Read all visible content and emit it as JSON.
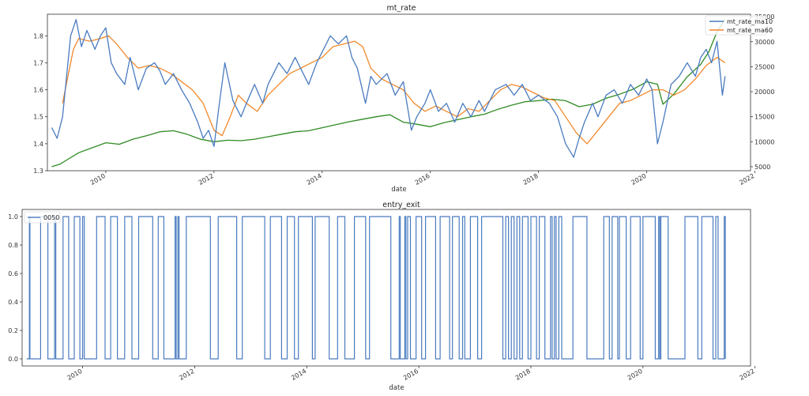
{
  "chart_data": [
    {
      "type": "line",
      "title": "mt_rate",
      "xlabel": "date",
      "ylabel": "",
      "x_ticks": [
        "2010",
        "2012",
        "2014",
        "2016",
        "2018",
        "2020",
        "2022"
      ],
      "xlim": [
        2008.92,
        2021.92
      ],
      "ylim": [
        1.3,
        1.88
      ],
      "y_ticks": [
        "1.3",
        "1.4",
        "1.5",
        "1.6",
        "1.7",
        "1.8"
      ],
      "y2lim": [
        4200,
        35500
      ],
      "y2_ticks": [
        "5000",
        "10000",
        "15000",
        "20000",
        "25000",
        "30000",
        "35000"
      ],
      "legend_loc": "top-right",
      "colors": {
        "mt_rate_ma10": "#4a7bbf",
        "mt_rate_ma60": "#f0882a",
        "index": "#2e8b22"
      },
      "series": [
        {
          "name": "mt_rate_ma10",
          "axis": "left",
          "x": [
            2009.0,
            2009.1,
            2009.2,
            2009.35,
            2009.45,
            2009.55,
            2009.65,
            2009.8,
            2009.9,
            2010.0,
            2010.1,
            2010.2,
            2010.35,
            2010.45,
            2010.6,
            2010.75,
            2010.9,
            2011.0,
            2011.1,
            2011.25,
            2011.4,
            2011.55,
            2011.7,
            2011.8,
            2011.9,
            2012.0,
            2012.1,
            2012.2,
            2012.35,
            2012.5,
            2012.6,
            2012.75,
            2012.9,
            2013.0,
            2013.2,
            2013.35,
            2013.5,
            2013.6,
            2013.75,
            2013.9,
            2014.0,
            2014.15,
            2014.3,
            2014.45,
            2014.55,
            2014.65,
            2014.8,
            2014.9,
            2015.0,
            2015.2,
            2015.35,
            2015.5,
            2015.65,
            2015.75,
            2015.9,
            2016.0,
            2016.15,
            2016.3,
            2016.45,
            2016.6,
            2016.75,
            2016.9,
            2017.0,
            2017.2,
            2017.4,
            2017.55,
            2017.7,
            2017.85,
            2018.0,
            2018.2,
            2018.35,
            2018.5,
            2018.65,
            2018.75,
            2018.85,
            2019.0,
            2019.1,
            2019.25,
            2019.4,
            2019.55,
            2019.7,
            2019.85,
            2020.0,
            2020.1,
            2020.2,
            2020.3,
            2020.45,
            2020.6,
            2020.75,
            2020.9,
            2021.0,
            2021.1,
            2021.2,
            2021.3,
            2021.4,
            2021.45
          ],
          "values": [
            1.46,
            1.42,
            1.5,
            1.8,
            1.86,
            1.76,
            1.82,
            1.75,
            1.8,
            1.83,
            1.7,
            1.66,
            1.62,
            1.72,
            1.6,
            1.68,
            1.7,
            1.67,
            1.62,
            1.66,
            1.6,
            1.55,
            1.48,
            1.42,
            1.45,
            1.39,
            1.55,
            1.7,
            1.56,
            1.5,
            1.55,
            1.62,
            1.55,
            1.62,
            1.7,
            1.66,
            1.72,
            1.68,
            1.62,
            1.7,
            1.74,
            1.8,
            1.77,
            1.8,
            1.72,
            1.68,
            1.55,
            1.65,
            1.62,
            1.66,
            1.58,
            1.63,
            1.45,
            1.5,
            1.55,
            1.6,
            1.52,
            1.55,
            1.48,
            1.55,
            1.5,
            1.56,
            1.52,
            1.6,
            1.62,
            1.58,
            1.62,
            1.56,
            1.58,
            1.55,
            1.5,
            1.4,
            1.35,
            1.42,
            1.48,
            1.55,
            1.5,
            1.58,
            1.6,
            1.55,
            1.62,
            1.58,
            1.64,
            1.6,
            1.4,
            1.48,
            1.62,
            1.65,
            1.7,
            1.65,
            1.72,
            1.75,
            1.7,
            1.78,
            1.58,
            1.65
          ]
        },
        {
          "name": "mt_rate_ma60",
          "axis": "left",
          "x": [
            2009.2,
            2009.3,
            2009.4,
            2009.5,
            2009.7,
            2009.9,
            2010.05,
            2010.2,
            2010.4,
            2010.6,
            2010.8,
            2011.0,
            2011.2,
            2011.4,
            2011.6,
            2011.8,
            2012.0,
            2012.15,
            2012.3,
            2012.45,
            2012.6,
            2012.8,
            2013.0,
            2013.2,
            2013.4,
            2013.6,
            2013.8,
            2014.0,
            2014.2,
            2014.4,
            2014.6,
            2014.75,
            2014.9,
            2015.1,
            2015.3,
            2015.5,
            2015.7,
            2015.9,
            2016.1,
            2016.3,
            2016.5,
            2016.7,
            2016.9,
            2017.1,
            2017.3,
            2017.5,
            2017.7,
            2017.9,
            2018.1,
            2018.3,
            2018.5,
            2018.7,
            2018.9,
            2019.1,
            2019.3,
            2019.5,
            2019.7,
            2019.9,
            2020.1,
            2020.3,
            2020.5,
            2020.7,
            2020.9,
            2021.1,
            2021.3,
            2021.45
          ],
          "values": [
            1.55,
            1.65,
            1.75,
            1.79,
            1.78,
            1.79,
            1.8,
            1.77,
            1.72,
            1.68,
            1.69,
            1.68,
            1.66,
            1.63,
            1.6,
            1.55,
            1.45,
            1.43,
            1.5,
            1.58,
            1.55,
            1.52,
            1.58,
            1.62,
            1.66,
            1.68,
            1.7,
            1.72,
            1.76,
            1.77,
            1.78,
            1.76,
            1.68,
            1.64,
            1.62,
            1.6,
            1.55,
            1.52,
            1.54,
            1.52,
            1.5,
            1.53,
            1.52,
            1.56,
            1.6,
            1.62,
            1.61,
            1.59,
            1.57,
            1.56,
            1.5,
            1.44,
            1.4,
            1.45,
            1.5,
            1.55,
            1.56,
            1.58,
            1.6,
            1.6,
            1.58,
            1.6,
            1.64,
            1.69,
            1.72,
            1.7
          ]
        },
        {
          "name": "",
          "axis": "right",
          "x": [
            2009.0,
            2009.15,
            2009.3,
            2009.5,
            2009.75,
            2010.0,
            2010.25,
            2010.5,
            2010.75,
            2011.0,
            2011.25,
            2011.5,
            2011.75,
            2012.0,
            2012.25,
            2012.5,
            2012.75,
            2013.0,
            2013.25,
            2013.5,
            2013.75,
            2014.0,
            2014.25,
            2014.5,
            2014.75,
            2015.0,
            2015.25,
            2015.5,
            2015.75,
            2016.0,
            2016.25,
            2016.5,
            2016.75,
            2017.0,
            2017.25,
            2017.5,
            2017.75,
            2018.0,
            2018.25,
            2018.5,
            2018.75,
            2019.0,
            2019.25,
            2019.5,
            2019.75,
            2020.0,
            2020.2,
            2020.3,
            2020.5,
            2020.75,
            2021.0,
            2021.15,
            2021.3,
            2021.45
          ],
          "values": [
            5000,
            5500,
            6500,
            7800,
            8800,
            9800,
            9500,
            10500,
            11200,
            12000,
            12200,
            11500,
            10500,
            10000,
            10300,
            10200,
            10500,
            11000,
            11500,
            12000,
            12200,
            12800,
            13400,
            14000,
            14500,
            15000,
            15400,
            13900,
            13500,
            13000,
            13800,
            14400,
            15000,
            15500,
            16500,
            17300,
            18000,
            18200,
            18500,
            18200,
            17000,
            17500,
            18700,
            19500,
            20500,
            22000,
            21500,
            17500,
            19500,
            23000,
            25500,
            28000,
            32000,
            34500
          ]
        }
      ]
    },
    {
      "type": "line",
      "title": "entry_exit",
      "xlabel": "date",
      "ylabel": "",
      "x_ticks": [
        "2010",
        "2012",
        "2014",
        "2016",
        "2018",
        "2020",
        "2022"
      ],
      "xlim": [
        2008.92,
        2021.92
      ],
      "ylim": [
        -0.05,
        1.05
      ],
      "y_ticks": [
        "0.0",
        "0.2",
        "0.4",
        "0.6",
        "0.8",
        "1.0"
      ],
      "legend_loc": "top-left",
      "colors": {
        "0050": "#4a7bbf"
      },
      "series": [
        {
          "name": "0050",
          "type": "step",
          "on_intervals": [
            [
              2009.05,
              2009.06
            ],
            [
              2009.25,
              2009.38
            ],
            [
              2009.5,
              2009.52
            ],
            [
              2009.65,
              2009.75
            ],
            [
              2009.85,
              2009.95
            ],
            [
              2010.0,
              2010.03
            ],
            [
              2010.25,
              2010.4
            ],
            [
              2010.5,
              2010.62
            ],
            [
              2010.75,
              2010.88
            ],
            [
              2011.0,
              2011.25
            ],
            [
              2011.35,
              2011.45
            ],
            [
              2011.65,
              2011.67
            ],
            [
              2011.7,
              2011.72
            ],
            [
              2011.85,
              2012.28
            ],
            [
              2012.42,
              2012.75
            ],
            [
              2012.85,
              2013.25
            ],
            [
              2013.35,
              2013.55
            ],
            [
              2013.65,
              2013.78
            ],
            [
              2013.85,
              2014.1
            ],
            [
              2014.15,
              2014.4
            ],
            [
              2014.55,
              2014.68
            ],
            [
              2014.85,
              2015.05
            ],
            [
              2015.12,
              2015.5
            ],
            [
              2015.65,
              2015.67
            ],
            [
              2015.75,
              2015.77
            ],
            [
              2015.8,
              2015.85
            ],
            [
              2015.95,
              2016.05
            ],
            [
              2016.12,
              2016.3
            ],
            [
              2016.38,
              2016.55
            ],
            [
              2016.6,
              2016.72
            ],
            [
              2016.78,
              2016.82
            ],
            [
              2016.92,
              2017.05
            ],
            [
              2017.12,
              2017.5
            ],
            [
              2017.55,
              2017.6
            ],
            [
              2017.65,
              2017.7
            ],
            [
              2017.75,
              2017.8
            ],
            [
              2017.85,
              2017.95
            ],
            [
              2018.0,
              2018.1
            ],
            [
              2018.15,
              2018.25
            ],
            [
              2018.35,
              2018.38
            ],
            [
              2018.42,
              2018.45
            ],
            [
              2018.5,
              2018.55
            ],
            [
              2018.75,
              2019.0
            ],
            [
              2019.3,
              2019.4
            ],
            [
              2019.45,
              2019.55
            ],
            [
              2019.58,
              2019.7
            ],
            [
              2019.78,
              2019.95
            ],
            [
              2020.0,
              2020.22
            ],
            [
              2020.28,
              2020.3
            ],
            [
              2020.32,
              2020.45
            ],
            [
              2020.75,
              2020.98
            ],
            [
              2021.05,
              2021.25
            ],
            [
              2021.3,
              2021.34
            ],
            [
              2021.45,
              2021.47
            ]
          ]
        }
      ]
    }
  ]
}
